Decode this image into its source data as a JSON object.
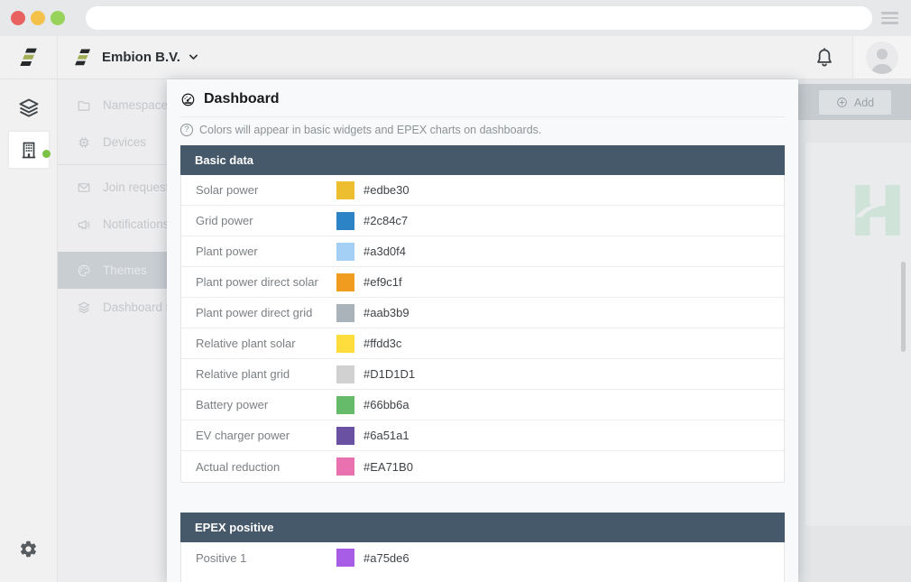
{
  "browser": {
    "url": ""
  },
  "header": {
    "org": "Embion B.V."
  },
  "nav": {
    "items": [
      {
        "id": "namespaces",
        "label": "Namespaces",
        "icon": "folder"
      },
      {
        "id": "devices",
        "label": "Devices",
        "icon": "chip",
        "divider_after": true
      },
      {
        "id": "join-requests",
        "label": "Join requests",
        "icon": "envelope"
      },
      {
        "id": "notifications",
        "label": "Notifications",
        "icon": "megaphone"
      },
      {
        "id": "themes",
        "label": "Themes",
        "icon": "palette",
        "active": true
      },
      {
        "id": "dashboard-templates",
        "label": "Dashboard te",
        "icon": "layers-sm"
      }
    ]
  },
  "modal": {
    "title": "Dashboard",
    "info": "Colors will appear in basic widgets and EPEX charts on dashboards.",
    "sections": [
      {
        "title": "Basic data",
        "rows": [
          {
            "label": "Solar power",
            "hex": "#edbe30"
          },
          {
            "label": "Grid power",
            "hex": "#2c84c7"
          },
          {
            "label": "Plant power",
            "hex": "#a3d0f4"
          },
          {
            "label": "Plant power direct solar",
            "hex": "#ef9c1f"
          },
          {
            "label": "Plant power direct grid",
            "hex": "#aab3b9"
          },
          {
            "label": "Relative plant solar",
            "hex": "#ffdd3c"
          },
          {
            "label": "Relative plant grid",
            "hex": "#D1D1D1"
          },
          {
            "label": "Battery power",
            "hex": "#66bb6a"
          },
          {
            "label": "EV charger power",
            "hex": "#6a51a1"
          },
          {
            "label": "Actual reduction",
            "hex": "#EA71B0"
          }
        ]
      },
      {
        "title": "EPEX positive",
        "rows": [
          {
            "label": "Positive 1",
            "hex": "#a75de6"
          }
        ]
      }
    ]
  },
  "content": {
    "add": "Add"
  },
  "colors": {
    "traffic_red": "#e86360",
    "traffic_yellow": "#f4c24a",
    "traffic_green": "#97d35a",
    "brand_dark": "#26292a",
    "brand_olive": "#a2ad55",
    "section_header_bg": "#46596a",
    "online_dot": "#7ac144",
    "accent_h_logo": "#cfe3d8"
  }
}
